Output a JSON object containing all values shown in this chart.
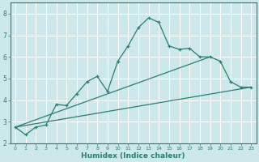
{
  "bg_color": "#cce8ea",
  "grid_color": "#ffffff",
  "line_color": "#2d7d6e",
  "tick_color": "#2d7d6e",
  "xlabel": "Humidex (Indice chaleur)",
  "ylim": [
    2,
    8.5
  ],
  "xlim": [
    -0.5,
    23.5
  ],
  "yticks": [
    2,
    3,
    4,
    5,
    6,
    7,
    8
  ],
  "xticks": [
    0,
    1,
    2,
    3,
    4,
    5,
    6,
    7,
    8,
    9,
    10,
    11,
    12,
    13,
    14,
    15,
    16,
    17,
    18,
    19,
    20,
    21,
    22,
    23
  ],
  "curve1_x": [
    0,
    1,
    2,
    3,
    4,
    5,
    6,
    7,
    8,
    9,
    10,
    11,
    12,
    13,
    14,
    15,
    16,
    17,
    18,
    19,
    20,
    21,
    22,
    23
  ],
  "curve1_y": [
    2.75,
    2.4,
    2.75,
    2.85,
    3.8,
    3.75,
    4.3,
    4.85,
    5.1,
    4.4,
    5.8,
    6.5,
    7.35,
    7.8,
    7.6,
    6.5,
    6.35,
    6.4,
    6.0,
    6.0,
    5.8,
    4.85,
    4.6,
    4.6
  ],
  "line2_x": [
    0,
    19
  ],
  "line2_y": [
    2.75,
    6.0
  ],
  "line3_x": [
    0,
    23
  ],
  "line3_y": [
    2.75,
    4.6
  ]
}
